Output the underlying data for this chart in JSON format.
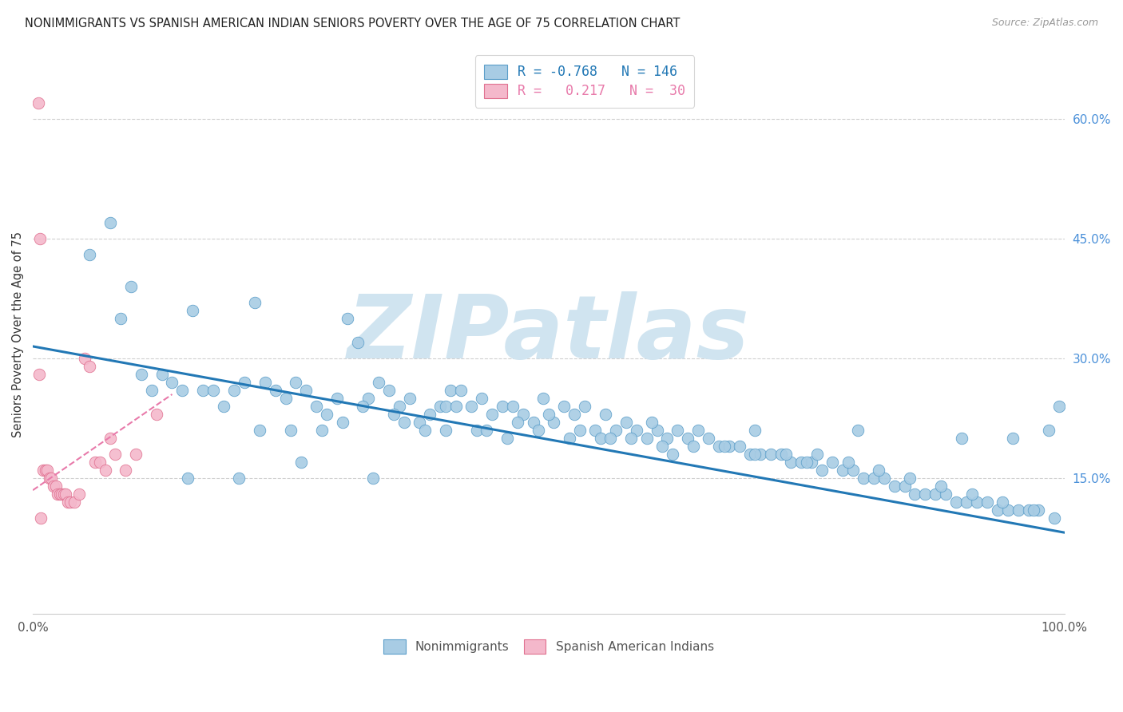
{
  "title": "NONIMMIGRANTS VS SPANISH AMERICAN INDIAN SENIORS POVERTY OVER THE AGE OF 75 CORRELATION CHART",
  "source": "Source: ZipAtlas.com",
  "ylabel": "Seniors Poverty Over the Age of 75",
  "xlim": [
    0,
    1.0
  ],
  "ylim": [
    -0.02,
    0.68
  ],
  "right_yticks": [
    0.15,
    0.3,
    0.45,
    0.6
  ],
  "right_yticklabels": [
    "15.0%",
    "30.0%",
    "45.0%",
    "60.0%"
  ],
  "blue_R": "-0.768",
  "blue_N": "146",
  "pink_R": "0.217",
  "pink_N": "30",
  "blue_color": "#a8cce4",
  "pink_color": "#f4b8cb",
  "blue_edge_color": "#5b9ec9",
  "pink_edge_color": "#e07090",
  "blue_line_color": "#2278b5",
  "pink_line_color": "#e87aaa",
  "watermark": "ZIPatlas",
  "watermark_color": "#d0e4f0",
  "title_fontsize": 10.5,
  "source_fontsize": 9,
  "blue_scatter_x": [
    0.055,
    0.075,
    0.085,
    0.095,
    0.105,
    0.115,
    0.125,
    0.135,
    0.145,
    0.155,
    0.165,
    0.175,
    0.185,
    0.195,
    0.205,
    0.215,
    0.225,
    0.235,
    0.245,
    0.255,
    0.265,
    0.275,
    0.285,
    0.295,
    0.305,
    0.315,
    0.325,
    0.335,
    0.345,
    0.355,
    0.365,
    0.375,
    0.385,
    0.395,
    0.405,
    0.415,
    0.425,
    0.435,
    0.445,
    0.455,
    0.465,
    0.475,
    0.485,
    0.495,
    0.505,
    0.515,
    0.525,
    0.535,
    0.545,
    0.555,
    0.565,
    0.575,
    0.585,
    0.595,
    0.605,
    0.615,
    0.625,
    0.635,
    0.645,
    0.655,
    0.665,
    0.675,
    0.685,
    0.695,
    0.705,
    0.715,
    0.725,
    0.735,
    0.745,
    0.755,
    0.765,
    0.775,
    0.785,
    0.795,
    0.805,
    0.815,
    0.825,
    0.835,
    0.845,
    0.855,
    0.865,
    0.875,
    0.885,
    0.895,
    0.905,
    0.915,
    0.925,
    0.935,
    0.945,
    0.955,
    0.965,
    0.975,
    0.985,
    0.995,
    0.22,
    0.25,
    0.28,
    0.32,
    0.35,
    0.38,
    0.4,
    0.43,
    0.46,
    0.49,
    0.52,
    0.55,
    0.58,
    0.61,
    0.64,
    0.67,
    0.7,
    0.73,
    0.76,
    0.79,
    0.82,
    0.85,
    0.88,
    0.91,
    0.94,
    0.97,
    0.99,
    0.15,
    0.2,
    0.3,
    0.4,
    0.5,
    0.6,
    0.7,
    0.8,
    0.9,
    0.95,
    0.26,
    0.33,
    0.36,
    0.41,
    0.44,
    0.47,
    0.53,
    0.56,
    0.62,
    0.75
  ],
  "blue_scatter_y": [
    0.43,
    0.47,
    0.35,
    0.39,
    0.28,
    0.26,
    0.28,
    0.27,
    0.26,
    0.36,
    0.26,
    0.26,
    0.24,
    0.26,
    0.27,
    0.37,
    0.27,
    0.26,
    0.25,
    0.27,
    0.26,
    0.24,
    0.23,
    0.25,
    0.35,
    0.32,
    0.25,
    0.27,
    0.26,
    0.24,
    0.25,
    0.22,
    0.23,
    0.24,
    0.26,
    0.26,
    0.24,
    0.25,
    0.23,
    0.24,
    0.24,
    0.23,
    0.22,
    0.25,
    0.22,
    0.24,
    0.23,
    0.24,
    0.21,
    0.23,
    0.21,
    0.22,
    0.21,
    0.2,
    0.21,
    0.2,
    0.21,
    0.2,
    0.21,
    0.2,
    0.19,
    0.19,
    0.19,
    0.18,
    0.18,
    0.18,
    0.18,
    0.17,
    0.17,
    0.17,
    0.16,
    0.17,
    0.16,
    0.16,
    0.15,
    0.15,
    0.15,
    0.14,
    0.14,
    0.13,
    0.13,
    0.13,
    0.13,
    0.12,
    0.12,
    0.12,
    0.12,
    0.11,
    0.11,
    0.11,
    0.11,
    0.11,
    0.21,
    0.24,
    0.21,
    0.21,
    0.21,
    0.24,
    0.23,
    0.21,
    0.21,
    0.21,
    0.2,
    0.21,
    0.2,
    0.2,
    0.2,
    0.19,
    0.19,
    0.19,
    0.18,
    0.18,
    0.18,
    0.17,
    0.16,
    0.15,
    0.14,
    0.13,
    0.12,
    0.11,
    0.1,
    0.15,
    0.15,
    0.22,
    0.24,
    0.23,
    0.22,
    0.21,
    0.21,
    0.2,
    0.2,
    0.17,
    0.15,
    0.22,
    0.24,
    0.21,
    0.22,
    0.21,
    0.2,
    0.18,
    0.17
  ],
  "pink_scatter_x": [
    0.005,
    0.007,
    0.01,
    0.012,
    0.014,
    0.016,
    0.018,
    0.02,
    0.022,
    0.024,
    0.026,
    0.028,
    0.03,
    0.032,
    0.034,
    0.036,
    0.04,
    0.045,
    0.05,
    0.055,
    0.06,
    0.065,
    0.07,
    0.075,
    0.08,
    0.09,
    0.1,
    0.12,
    0.006,
    0.008
  ],
  "pink_scatter_y": [
    0.62,
    0.45,
    0.16,
    0.16,
    0.16,
    0.15,
    0.15,
    0.14,
    0.14,
    0.13,
    0.13,
    0.13,
    0.13,
    0.13,
    0.12,
    0.12,
    0.12,
    0.13,
    0.3,
    0.29,
    0.17,
    0.17,
    0.16,
    0.2,
    0.18,
    0.16,
    0.18,
    0.23,
    0.28,
    0.1
  ],
  "blue_trend_x": [
    0.0,
    1.0
  ],
  "blue_trend_y": [
    0.315,
    0.082
  ],
  "pink_trend_x": [
    0.0,
    0.135
  ],
  "pink_trend_y": [
    0.135,
    0.255
  ]
}
